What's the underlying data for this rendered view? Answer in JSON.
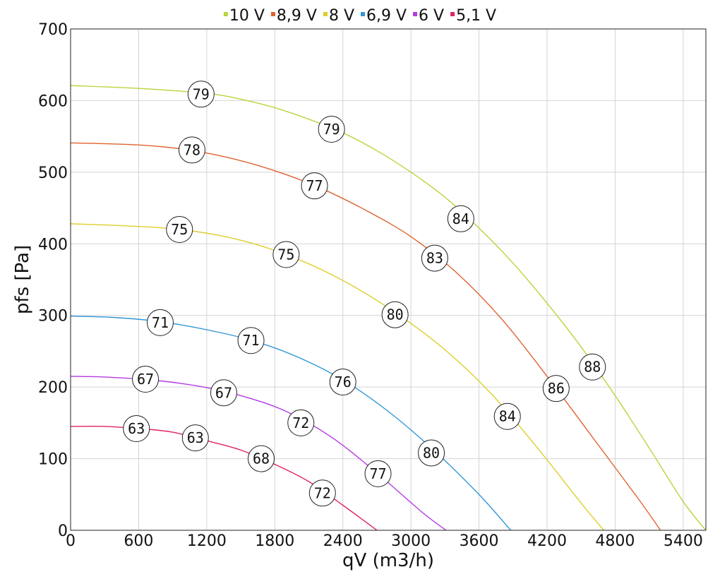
{
  "chart_data": {
    "type": "line",
    "title": "",
    "xlabel": "qV (m3/h)",
    "ylabel": "pfs [Pa]",
    "xlim": [
      0,
      5600
    ],
    "ylim": [
      0,
      700
    ],
    "x_ticks": [
      0,
      600,
      1200,
      1800,
      2400,
      3000,
      3600,
      4200,
      4800,
      5400
    ],
    "y_ticks": [
      0,
      100,
      200,
      300,
      400,
      500,
      600,
      700
    ],
    "grid": true,
    "legend_position": "top-center",
    "series": [
      {
        "name": "10 V",
        "color": "#b5d63c",
        "x": [
          0,
          600,
          1200,
          1500,
          1800,
          2100,
          2400,
          2700,
          3000,
          3300,
          3600,
          3900,
          4200,
          4500,
          4800,
          5100,
          5400,
          5600
        ],
        "y": [
          621,
          617,
          610,
          602,
          590,
          574,
          555,
          530,
          500,
          465,
          422,
          373,
          317,
          256,
          188,
          115,
          40,
          0
        ],
        "labels": [
          {
            "x": 1150,
            "y": 609,
            "text": "79"
          },
          {
            "x": 2300,
            "y": 560,
            "text": "79"
          },
          {
            "x": 3440,
            "y": 435,
            "text": "84"
          },
          {
            "x": 4600,
            "y": 228,
            "text": "88"
          }
        ]
      },
      {
        "name": "8,9 V",
        "color": "#e0622e",
        "x": [
          0,
          600,
          1000,
          1400,
          1800,
          2200,
          2600,
          3000,
          3400,
          3800,
          4200,
          4600,
          5000,
          5200
        ],
        "y": [
          541,
          538,
          532,
          520,
          502,
          478,
          447,
          410,
          360,
          295,
          215,
          130,
          45,
          0
        ],
        "labels": [
          {
            "x": 1070,
            "y": 531,
            "text": "78"
          },
          {
            "x": 2150,
            "y": 481,
            "text": "77"
          },
          {
            "x": 3210,
            "y": 380,
            "text": "83"
          },
          {
            "x": 4280,
            "y": 198,
            "text": "86"
          }
        ]
      },
      {
        "name": "8 V",
        "color": "#dccf2a",
        "x": [
          0,
          500,
          900,
          1300,
          1700,
          2100,
          2500,
          2900,
          3300,
          3700,
          4100,
          4500,
          4700
        ],
        "y": [
          428,
          425,
          421,
          412,
          396,
          372,
          340,
          300,
          252,
          192,
          118,
          38,
          0
        ],
        "labels": [
          {
            "x": 960,
            "y": 420,
            "text": "75"
          },
          {
            "x": 1900,
            "y": 385,
            "text": "75"
          },
          {
            "x": 2860,
            "y": 301,
            "text": "80"
          },
          {
            "x": 3850,
            "y": 159,
            "text": "84"
          }
        ]
      },
      {
        "name": "6,9 V",
        "color": "#2f96d8",
        "x": [
          0,
          400,
          800,
          1200,
          1600,
          2000,
          2400,
          2800,
          3200,
          3600,
          3880
        ],
        "y": [
          299,
          297,
          291,
          280,
          265,
          242,
          210,
          166,
          112,
          50,
          0
        ],
        "labels": [
          {
            "x": 790,
            "y": 290,
            "text": "71"
          },
          {
            "x": 1590,
            "y": 265,
            "text": "71"
          },
          {
            "x": 2400,
            "y": 207,
            "text": "76"
          },
          {
            "x": 3180,
            "y": 108,
            "text": "80"
          }
        ]
      },
      {
        "name": "6 V",
        "color": "#b23be0",
        "x": [
          0,
          300,
          700,
          1100,
          1500,
          1900,
          2300,
          2700,
          3100,
          3310
        ],
        "y": [
          215,
          214,
          210,
          202,
          188,
          166,
          130,
          80,
          25,
          0
        ],
        "labels": [
          {
            "x": 660,
            "y": 211,
            "text": "67"
          },
          {
            "x": 1350,
            "y": 192,
            "text": "67"
          },
          {
            "x": 2030,
            "y": 150,
            "text": "72"
          },
          {
            "x": 2710,
            "y": 79,
            "text": "77"
          }
        ]
      },
      {
        "name": "5,1 V",
        "color": "#e0245e",
        "x": [
          0,
          300,
          600,
          900,
          1200,
          1500,
          1800,
          2100,
          2400,
          2700
        ],
        "y": [
          145,
          145,
          142,
          137,
          125,
          112,
          92,
          68,
          35,
          0
        ],
        "labels": [
          {
            "x": 580,
            "y": 142,
            "text": "63"
          },
          {
            "x": 1100,
            "y": 129,
            "text": "63"
          },
          {
            "x": 1680,
            "y": 100,
            "text": "68"
          },
          {
            "x": 2220,
            "y": 52,
            "text": "72"
          }
        ]
      }
    ]
  }
}
